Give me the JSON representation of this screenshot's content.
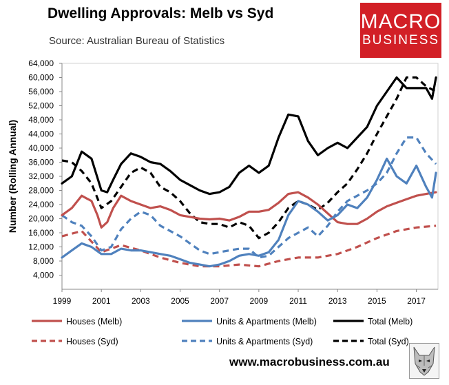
{
  "header": {
    "title": "Dwelling Approvals: Melb vs Syd",
    "subtitle": "Source: Australian Bureau of Statistics"
  },
  "logo": {
    "line1": "MACRO",
    "line2": "BUSINESS",
    "color": "#d21f26"
  },
  "footer": {
    "url": "www.macrobusiness.com.au",
    "emblem": "wolf-emblem-icon"
  },
  "chart_data": {
    "type": "line",
    "title": "Dwelling Approvals: Melb vs Syd",
    "xlabel": "",
    "ylabel": "Number (Rolling Annual)",
    "xlim": [
      1999,
      2018.1
    ],
    "ylim": [
      0,
      64000
    ],
    "y_ticks": [
      4000,
      8000,
      12000,
      16000,
      20000,
      24000,
      28000,
      32000,
      36000,
      40000,
      44000,
      48000,
      52000,
      56000,
      60000,
      64000
    ],
    "y_tick_labels": [
      "4,000",
      "8,000",
      "12,000",
      "16,000",
      "20,000",
      "24,000",
      "28,000",
      "32,000",
      "36,000",
      "40,000",
      "44,000",
      "48,000",
      "52,000",
      "56,000",
      "60,000",
      "64,000"
    ],
    "x_ticks": [
      1999,
      2001,
      2003,
      2005,
      2007,
      2009,
      2011,
      2013,
      2015,
      2017
    ],
    "x_tick_labels": [
      "1999",
      "2001",
      "2003",
      "2005",
      "2007",
      "2009",
      "2011",
      "2013",
      "2015",
      "2017"
    ],
    "grid": false,
    "legend_position": "bottom",
    "series": [
      {
        "name": "Houses (Melb)",
        "color": "#c0504d",
        "dash": "solid",
        "x": [
          1999,
          1999.5,
          2000,
          2000.5,
          2000.8,
          2001,
          2001.3,
          2001.6,
          2002,
          2002.5,
          2003,
          2003.5,
          2004,
          2004.5,
          2005,
          2005.5,
          2006,
          2006.5,
          2007,
          2007.5,
          2008,
          2008.5,
          2009,
          2009.5,
          2010,
          2010.5,
          2011,
          2011.5,
          2012,
          2012.5,
          2013,
          2013.5,
          2014,
          2014.5,
          2015,
          2015.5,
          2016,
          2016.5,
          2017,
          2017.5,
          2018
        ],
        "y": [
          21000,
          23000,
          26500,
          25000,
          21000,
          17500,
          19000,
          23000,
          26500,
          25000,
          24000,
          23000,
          23500,
          22500,
          21000,
          20500,
          20000,
          19800,
          20000,
          19500,
          20500,
          22000,
          22000,
          22500,
          24500,
          27000,
          27500,
          26000,
          24000,
          21500,
          19000,
          18500,
          18500,
          20000,
          22000,
          23500,
          24500,
          25500,
          26500,
          27000,
          27500
        ]
      },
      {
        "name": "Units & Apartments (Melb)",
        "color": "#4f81bd",
        "dash": "solid",
        "x": [
          1999,
          1999.5,
          2000,
          2000.5,
          2001,
          2001.5,
          2002,
          2002.5,
          2003,
          2003.5,
          2004,
          2004.5,
          2005,
          2005.5,
          2006,
          2006.5,
          2007,
          2007.5,
          2008,
          2008.5,
          2009,
          2009.5,
          2010,
          2010.5,
          2011,
          2011.5,
          2012,
          2012.5,
          2013,
          2013.5,
          2014,
          2014.5,
          2015,
          2015.5,
          2016,
          2016.5,
          2017,
          2017.5,
          2017.8,
          2018
        ],
        "y": [
          9000,
          11000,
          13000,
          12000,
          10000,
          10000,
          11500,
          11000,
          11000,
          10500,
          10000,
          9500,
          8500,
          7500,
          7000,
          6500,
          7000,
          8000,
          9500,
          10000,
          9500,
          10500,
          14000,
          21000,
          25000,
          24000,
          22000,
          19500,
          21000,
          24000,
          23000,
          26000,
          31000,
          37000,
          32000,
          30000,
          35000,
          29000,
          26000,
          33000
        ]
      },
      {
        "name": "Total (Melb)",
        "color": "#000000",
        "dash": "solid",
        "x": [
          1999,
          1999.5,
          2000,
          2000.5,
          2001,
          2001.3,
          2001.6,
          2002,
          2002.5,
          2003,
          2003.5,
          2004,
          2004.5,
          2005,
          2005.5,
          2006,
          2006.5,
          2007,
          2007.5,
          2008,
          2008.5,
          2009,
          2009.5,
          2010,
          2010.5,
          2011,
          2011.5,
          2012,
          2012.5,
          2013,
          2013.5,
          2014,
          2014.5,
          2015,
          2015.5,
          2016,
          2016.5,
          2017,
          2017.5,
          2017.8,
          2018
        ],
        "y": [
          30000,
          32000,
          39000,
          37000,
          28000,
          27500,
          31000,
          35500,
          38500,
          37500,
          36000,
          35500,
          33500,
          31000,
          29500,
          28000,
          27000,
          27500,
          29000,
          33000,
          35000,
          33000,
          35000,
          43000,
          49500,
          49000,
          42000,
          38000,
          40000,
          41500,
          40000,
          43000,
          46000,
          52000,
          56000,
          60000,
          57000,
          57000,
          57000,
          54000,
          60000
        ]
      },
      {
        "name": "Houses (Syd)",
        "color": "#c0504d",
        "dash": "dashed",
        "x": [
          1999,
          2000,
          2001,
          2002,
          2003,
          2004,
          2005,
          2006,
          2007,
          2008,
          2009,
          2010,
          2011,
          2012,
          2013,
          2014,
          2015,
          2016,
          2017,
          2018
        ],
        "y": [
          15000,
          16500,
          10500,
          12500,
          11000,
          9000,
          7500,
          6500,
          6500,
          7000,
          6500,
          8000,
          9000,
          9000,
          10000,
          12000,
          14500,
          16500,
          17500,
          18000
        ]
      },
      {
        "name": "Units & Apartments (Syd)",
        "color": "#4f81bd",
        "dash": "dashed",
        "x": [
          1999,
          1999.5,
          2000,
          2000.5,
          2001,
          2001.5,
          2002,
          2002.5,
          2003,
          2003.5,
          2004,
          2004.5,
          2005,
          2005.5,
          2006,
          2006.5,
          2007,
          2007.5,
          2008,
          2008.5,
          2009,
          2009.5,
          2010,
          2010.5,
          2011,
          2011.5,
          2012,
          2012.5,
          2013,
          2013.5,
          2014,
          2014.5,
          2015,
          2015.5,
          2016,
          2016.5,
          2017,
          2017.5,
          2018
        ],
        "y": [
          21000,
          19000,
          18000,
          15000,
          11000,
          12000,
          17000,
          20000,
          22000,
          21000,
          18000,
          16500,
          15000,
          13000,
          11000,
          10000,
          10500,
          11000,
          11500,
          11500,
          9000,
          9500,
          12000,
          14500,
          16000,
          17500,
          15000,
          18000,
          22000,
          25000,
          26500,
          28000,
          30000,
          33000,
          38500,
          43000,
          43000,
          38500,
          35500
        ]
      },
      {
        "name": "Total (Syd)",
        "color": "#000000",
        "dash": "dashed",
        "x": [
          1999,
          1999.5,
          2000,
          2000.5,
          2001,
          2001.5,
          2002,
          2002.5,
          2003,
          2003.5,
          2004,
          2004.5,
          2005,
          2005.5,
          2006,
          2006.5,
          2007,
          2007.5,
          2008,
          2008.5,
          2009,
          2009.5,
          2010,
          2010.5,
          2011,
          2011.5,
          2012,
          2012.5,
          2013,
          2013.5,
          2014,
          2014.5,
          2015,
          2015.5,
          2016,
          2016.5,
          2017,
          2017.5,
          2018
        ],
        "y": [
          36500,
          36000,
          33500,
          30000,
          23000,
          25000,
          29000,
          33000,
          34500,
          33000,
          29000,
          27500,
          25000,
          21500,
          19000,
          18500,
          18500,
          17500,
          19000,
          18000,
          14500,
          16000,
          19000,
          23000,
          25000,
          24000,
          22500,
          24500,
          27500,
          30000,
          34000,
          38500,
          44000,
          49000,
          54000,
          60000,
          60000,
          57500,
          56000
        ]
      }
    ]
  }
}
